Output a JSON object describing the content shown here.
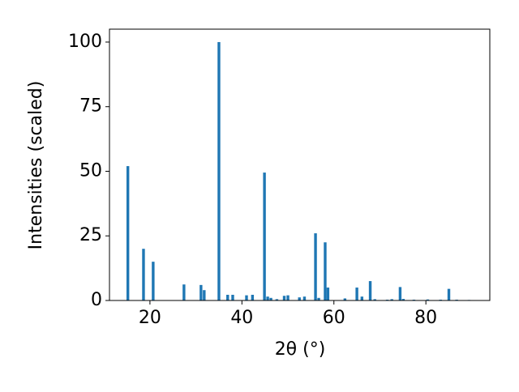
{
  "chart_data": {
    "type": "bar",
    "xlabel": "2θ (°)",
    "ylabel": "Intensities (scaled)",
    "color": "#1f77b4",
    "x": [
      15.2,
      18.6,
      20.7,
      27.4,
      31.1,
      31.8,
      35.0,
      36.9,
      38.0,
      41.0,
      42.3,
      44.9,
      45.6,
      46.3,
      47.6,
      49.2,
      50.0,
      52.5,
      53.6,
      56.0,
      56.7,
      58.1,
      58.7,
      62.4,
      65.0,
      66.1,
      67.9,
      68.9,
      71.6,
      72.6,
      74.4,
      75.1,
      77.4,
      80.4,
      83.2,
      85.0,
      86.7,
      89.4
    ],
    "values": [
      52,
      20,
      15,
      6.2,
      6,
      4,
      100,
      2.2,
      2.2,
      2,
      2.2,
      49.5,
      1.5,
      1,
      0.5,
      1.8,
      2,
      1.2,
      1.5,
      26,
      1,
      22.5,
      5,
      0.8,
      5,
      1.5,
      7.5,
      0.5,
      0.3,
      0.5,
      5.2,
      0.6,
      0.3,
      0.4,
      0.3,
      4.5,
      0.3,
      0.2
    ],
    "xlim": [
      11.2,
      93.9
    ],
    "ylim": [
      0,
      105
    ],
    "xticks": [
      20,
      40,
      60,
      80
    ],
    "yticks": [
      0,
      25,
      50,
      75,
      100
    ]
  }
}
